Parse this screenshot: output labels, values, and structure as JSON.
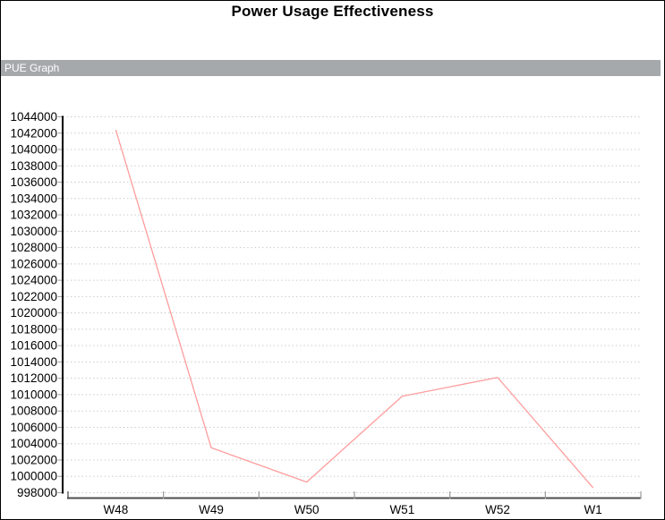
{
  "window": {
    "title": "Power Usage Effectiveness"
  },
  "panel": {
    "label": "PUE Graph",
    "bg_color": "#a5a9ab",
    "text_color": "#ffffff"
  },
  "chart_data": {
    "type": "line",
    "title": "Power Usage Effectiveness",
    "categories": [
      "W48",
      "W49",
      "W50",
      "W51",
      "W52",
      "W1"
    ],
    "series": [
      {
        "name": "PUE Graph",
        "values": [
          1042400,
          1003500,
          999300,
          1009800,
          1012100,
          998600
        ]
      }
    ],
    "ylim": [
      998000,
      1044000
    ],
    "ytick_step": 2000,
    "xlabel": "",
    "ylabel": "",
    "grid": "horizontal-dotted",
    "legend_position": "none",
    "markers": "none",
    "colors": {
      "line": "#ff9c9c",
      "gridline": "#c8c8c8",
      "y_axis": "#000000",
      "x_axis": "#4d4d4d",
      "tick": "#9a9a9a",
      "label_text": "#000000"
    }
  }
}
